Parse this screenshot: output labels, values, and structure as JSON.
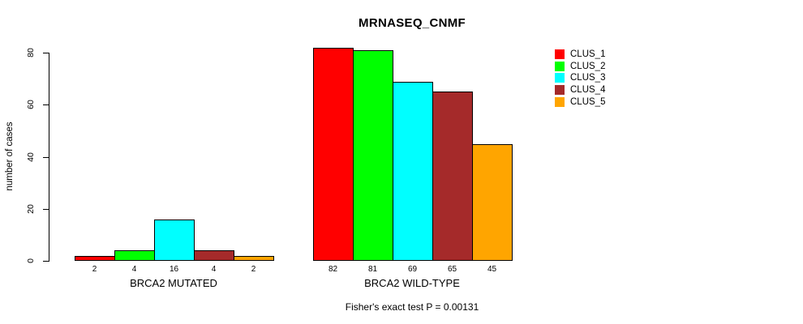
{
  "chart_data": {
    "type": "bar",
    "title": "MRNASEQ_CNMF",
    "ylabel": "number of cases",
    "ylim": [
      0,
      80
    ],
    "yticks": [
      0,
      20,
      40,
      60,
      80
    ],
    "grid": false,
    "legend_position": "right",
    "bar_outline_color": "#000000",
    "clusters": [
      {
        "name": "CLUS_1",
        "color": "#FF0000"
      },
      {
        "name": "CLUS_2",
        "color": "#00FF00"
      },
      {
        "name": "CLUS_3",
        "color": "#00FFFF"
      },
      {
        "name": "CLUS_4",
        "color": "#A52A2A"
      },
      {
        "name": "CLUS_5",
        "color": "#FFA500"
      }
    ],
    "groups": [
      {
        "label": "BRCA2 MUTATED",
        "values": [
          2,
          4,
          16,
          4,
          2
        ]
      },
      {
        "label": "BRCA2 WILD-TYPE",
        "values": [
          82,
          81,
          69,
          65,
          45
        ]
      }
    ],
    "annotation": "Fisher's exact test P = 0.00131"
  },
  "legend": {
    "items": [
      {
        "label": "CLUS_1",
        "color": "#FF0000"
      },
      {
        "label": "CLUS_2",
        "color": "#00FF00"
      },
      {
        "label": "CLUS_3",
        "color": "#00FFFF"
      },
      {
        "label": "CLUS_4",
        "color": "#A52A2A"
      },
      {
        "label": "CLUS_5",
        "color": "#FFA500"
      }
    ]
  }
}
